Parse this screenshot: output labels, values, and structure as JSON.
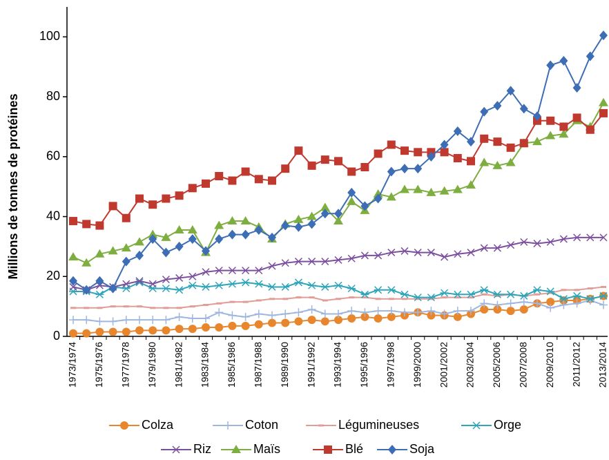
{
  "chart_data": {
    "type": "line",
    "y_label": "Millions de tonnes de protéines",
    "categories": [
      "1973/1974",
      null,
      "1975/1976",
      null,
      "1977/1978",
      null,
      "1979/1980",
      null,
      "1981/1982",
      null,
      "1983/1984",
      null,
      "1985/1986",
      null,
      "1987/1988",
      null,
      "1989/1990",
      null,
      "1991/1992",
      null,
      "1993/1994",
      null,
      "1995/1996",
      null,
      "1997/1998",
      null,
      "1999/2000",
      null,
      "2001/2002",
      null,
      "2003/2004",
      null,
      "2005/2006",
      null,
      "2007/2008",
      null,
      "2009/2010",
      null,
      "2011/2012",
      null,
      "2013/2014"
    ],
    "ylim": [
      0,
      110
    ],
    "yticks": [
      0,
      20,
      40,
      60,
      80,
      100
    ],
    "grid": false,
    "series": [
      {
        "name": "Colza",
        "color": "#e8862d",
        "marker": "circle",
        "values": [
          1,
          1,
          1.5,
          1.5,
          1.5,
          2,
          2,
          2,
          2.5,
          2.5,
          3,
          3,
          3.5,
          3.5,
          4,
          4.5,
          4.5,
          5,
          5.5,
          5,
          5.5,
          6,
          6.5,
          6,
          6.5,
          7,
          8,
          7,
          7,
          6.5,
          7.5,
          9,
          9,
          8.5,
          9,
          11,
          11.5,
          12,
          12,
          12.5,
          13.5
        ]
      },
      {
        "name": "Coton",
        "color": "#9fb6df",
        "marker": "plus",
        "values": [
          5.5,
          5.5,
          5,
          5,
          5.5,
          5.5,
          5.5,
          5.5,
          6.5,
          6,
          6,
          8,
          7,
          6.5,
          7.5,
          7,
          7.5,
          8,
          9,
          7.5,
          7.5,
          8.5,
          8,
          8.5,
          8.5,
          8,
          8,
          8.5,
          7.5,
          8.5,
          8.5,
          11,
          10.5,
          11,
          11.5,
          11,
          9.5,
          10.5,
          11,
          12,
          10.5
        ]
      },
      {
        "name": "Légumineuses",
        "color": "#e29c97",
        "marker": "dash",
        "values": [
          9.5,
          9.5,
          9.5,
          10,
          10,
          10,
          9.5,
          9.5,
          9.5,
          10,
          10.5,
          11,
          11.5,
          11.5,
          12,
          12.5,
          12.5,
          13,
          13,
          12,
          12.5,
          13,
          13,
          12.5,
          12.5,
          12.5,
          12.5,
          12.5,
          13,
          13,
          13,
          14,
          13.5,
          14,
          13.5,
          14,
          14.5,
          15.5,
          15.5,
          16,
          16.5
        ]
      },
      {
        "name": "Orge",
        "color": "#2fa5ba",
        "marker": "star",
        "values": [
          15,
          15,
          14,
          16.5,
          16,
          18,
          16,
          16,
          15.5,
          17,
          16.5,
          17,
          17.5,
          18,
          17.5,
          16.5,
          16.5,
          18,
          17,
          16.5,
          17,
          16,
          14,
          15.5,
          15.5,
          14,
          13,
          13,
          14.5,
          14,
          14,
          15.5,
          14,
          14,
          13.5,
          15.5,
          15,
          12.5,
          13.5,
          12.5,
          13.5
        ]
      },
      {
        "name": "Riz",
        "color": "#7b4f9e",
        "marker": "x",
        "values": [
          16.5,
          15.5,
          17,
          16.5,
          17.5,
          18.5,
          17.5,
          19,
          19.5,
          20,
          21.5,
          22,
          22,
          22,
          22,
          23.5,
          24.5,
          25,
          25,
          25,
          25.5,
          26,
          27,
          27,
          28,
          28.5,
          28,
          28,
          26.5,
          27.5,
          28,
          29.5,
          29.5,
          30.5,
          31.5,
          31,
          31.5,
          32.5,
          33,
          33,
          33
        ]
      },
      {
        "name": "Maïs",
        "color": "#7dae3f",
        "marker": "triangle",
        "values": [
          26.5,
          24.5,
          27.5,
          28.5,
          29.5,
          31.5,
          34,
          33,
          35.5,
          35.5,
          28,
          37,
          38.5,
          38.5,
          36.5,
          32.5,
          37.5,
          39,
          40,
          43,
          38.5,
          45,
          42,
          47.5,
          46.5,
          49,
          49,
          48,
          48.5,
          49,
          50.5,
          58,
          57,
          58,
          64.5,
          65,
          67,
          67.5,
          72,
          70,
          78
        ]
      },
      {
        "name": "Blé",
        "color": "#c0392f",
        "marker": "square",
        "values": [
          38.5,
          37.5,
          37,
          43.5,
          39.5,
          46,
          44,
          46,
          47,
          49.5,
          51,
          53.5,
          52,
          55,
          52.5,
          52,
          56,
          62,
          57,
          59,
          58.5,
          55,
          56.5,
          61,
          64,
          62,
          61.5,
          61.5,
          61.5,
          59.5,
          58.5,
          66,
          65,
          63,
          64.5,
          72,
          72,
          70,
          73,
          69,
          74.5
        ]
      },
      {
        "name": "Soja",
        "color": "#3c6db5",
        "marker": "diamond",
        "values": [
          18.5,
          15.5,
          18.5,
          16,
          25,
          27,
          32.5,
          28,
          30,
          32.5,
          28.5,
          32.5,
          34,
          34,
          35.5,
          33,
          37,
          36.5,
          37.5,
          41,
          41,
          48,
          43.5,
          46,
          55,
          56,
          56,
          60,
          64,
          68.5,
          65,
          75,
          77,
          82,
          76,
          73.5,
          90.5,
          92,
          83,
          93.5,
          100.5
        ]
      }
    ]
  }
}
